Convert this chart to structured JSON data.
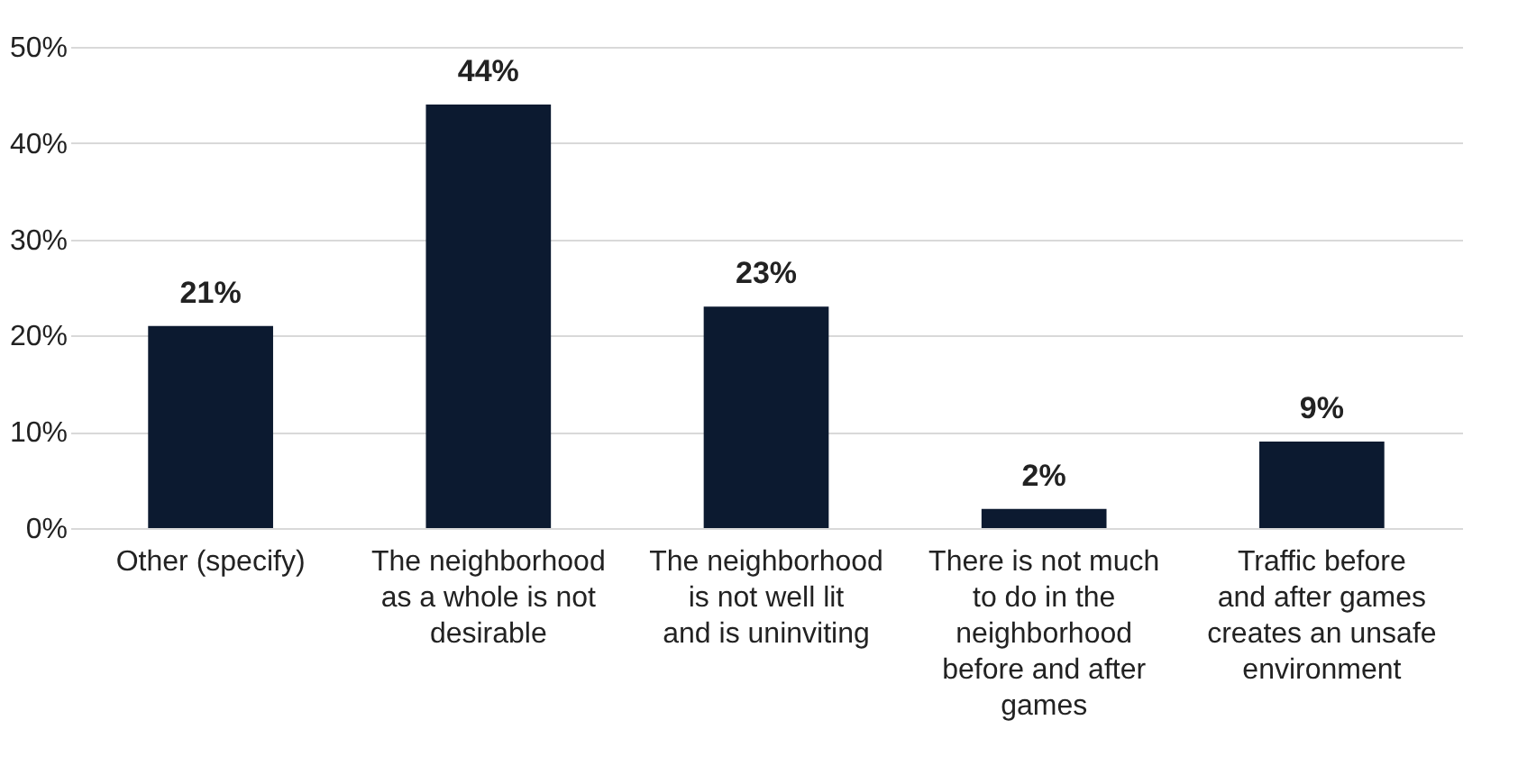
{
  "chart_data": {
    "type": "bar",
    "categories": [
      "Other (specify)",
      "The neighborhood as a whole is not desirable",
      "The neighborhood is not well lit and is uninviting",
      "There is not much to do in the neighborhood before and after games",
      "Traffic before and after games creates an unsafe environment"
    ],
    "values": [
      21,
      44,
      23,
      2,
      9
    ],
    "value_labels": [
      "21%",
      "44%",
      "23%",
      "2%",
      "9%"
    ],
    "color": "#0c1a30",
    "ylim": [
      0,
      50
    ],
    "yticks": [
      {
        "value": 0,
        "label": "0%"
      },
      {
        "value": 10,
        "label": "10%"
      },
      {
        "value": 20,
        "label": "20%"
      },
      {
        "value": 30,
        "label": "30%"
      },
      {
        "value": 40,
        "label": "40%"
      },
      {
        "value": 50,
        "label": "50%"
      }
    ],
    "grid": "y"
  }
}
